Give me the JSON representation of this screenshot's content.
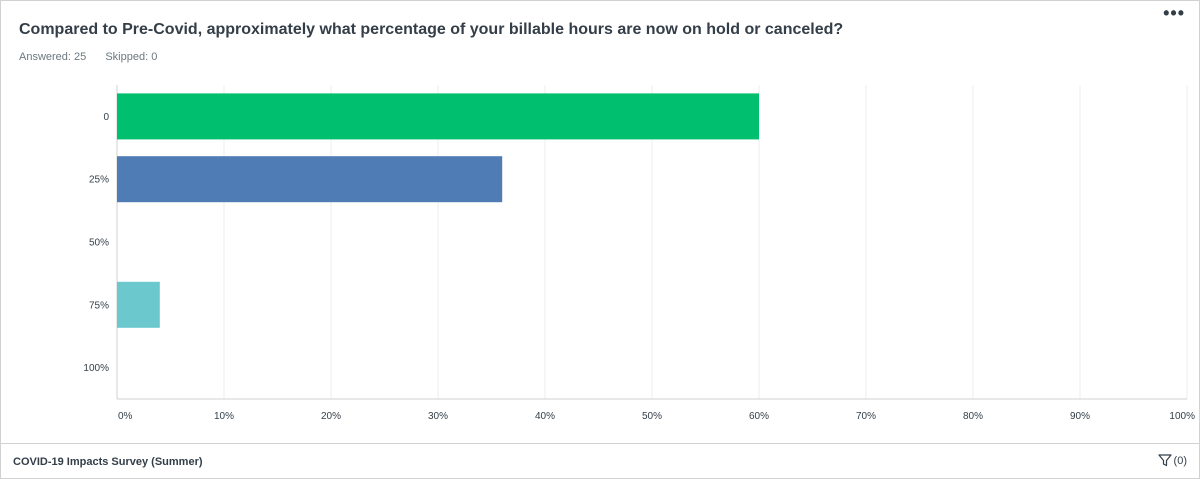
{
  "header": {
    "title": "Compared to Pre-Covid, approximately what percentage of your billable hours are now on hold or canceled?",
    "answered_label": "Answered: 25",
    "skipped_label": "Skipped: 0",
    "more_label": "•••"
  },
  "footer": {
    "survey_name": "COVID-19 Impacts Survey (Summer)",
    "filter_count": "(0)",
    "filter_icon": "filter-icon"
  },
  "chart_data": {
    "type": "bar",
    "orientation": "horizontal",
    "categories": [
      "0",
      "25%",
      "50%",
      "75%",
      "100%"
    ],
    "values": [
      60,
      36,
      0,
      4,
      0
    ],
    "colors": [
      "#00bf6f",
      "#507cb6",
      "#f9be00",
      "#6bc8cd",
      "#ff8b4f"
    ],
    "xticks": [
      "0%",
      "10%",
      "20%",
      "30%",
      "40%",
      "50%",
      "60%",
      "70%",
      "80%",
      "90%",
      "100%"
    ],
    "xlim": [
      0,
      100
    ],
    "grid": true
  }
}
